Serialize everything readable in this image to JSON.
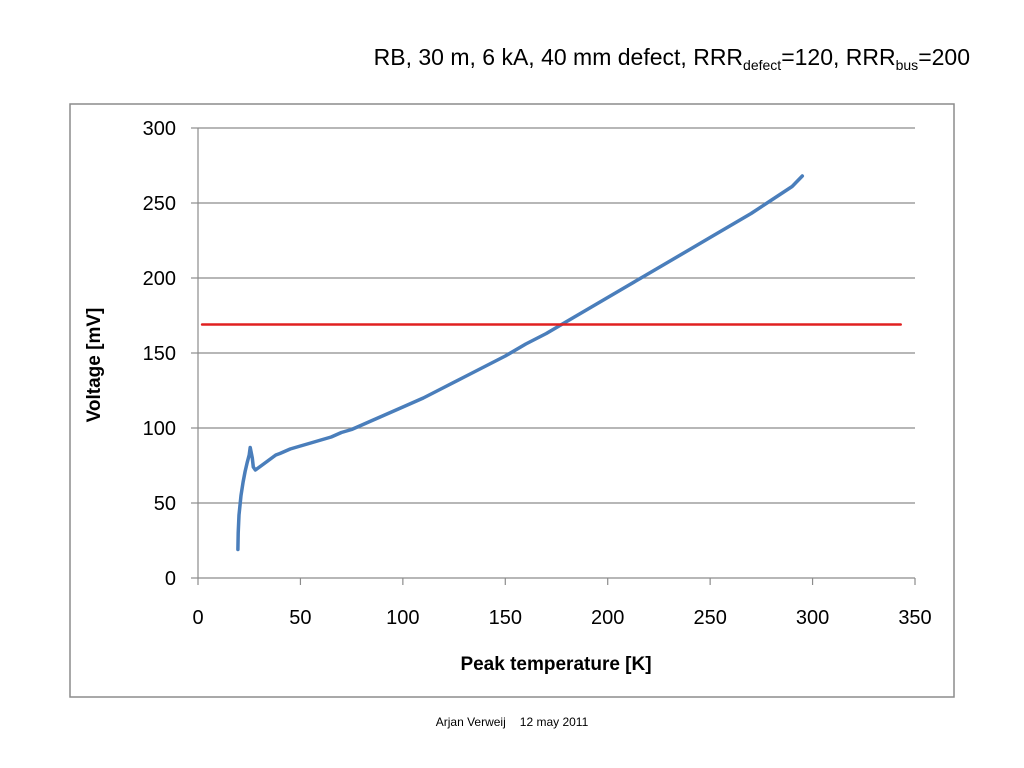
{
  "chart_data": {
    "type": "line",
    "title": {
      "prefix": "RB, 30 m, 6 kA, 40 mm defect, RRR",
      "sub1": "defect",
      "mid": "=120, RRR",
      "sub2": "bus",
      "suffix": "=200"
    },
    "xlabel": "Peak temperature [K]",
    "ylabel": "Voltage [mV]",
    "xlim": [
      0,
      350
    ],
    "ylim": [
      0,
      300
    ],
    "xticks": [
      "0",
      "50",
      "100",
      "150",
      "200",
      "250",
      "300",
      "350"
    ],
    "yticks": [
      "0",
      "50",
      "100",
      "150",
      "200",
      "250",
      "300"
    ],
    "grid": "horizontal major gridlines",
    "legend": "none",
    "series": [
      {
        "color": "#4a7ebb",
        "x": [
          19.5,
          19.6,
          20,
          21,
          22,
          23,
          24,
          25,
          25.5,
          26.5,
          27,
          28,
          30,
          32,
          35,
          38,
          40,
          45,
          50,
          55,
          60,
          65,
          70,
          75,
          80,
          85,
          90,
          100,
          110,
          120,
          130,
          140,
          150,
          160,
          170,
          180,
          190,
          200,
          210,
          220,
          230,
          240,
          250,
          260,
          270,
          280,
          290,
          295
        ],
        "y": [
          19,
          30,
          42,
          55,
          64,
          71,
          77,
          82,
          87,
          80,
          74,
          72,
          74,
          76,
          79,
          82,
          83,
          86,
          88,
          90,
          92,
          94,
          97,
          99,
          102,
          105,
          108,
          114,
          120,
          127,
          134,
          141,
          148,
          156,
          163,
          171,
          179,
          187,
          195,
          203,
          211,
          219,
          227,
          235,
          243,
          252,
          261,
          268
        ]
      },
      {
        "color": "#e02020",
        "x": [
          2,
          343
        ],
        "y": [
          169,
          169
        ]
      }
    ]
  },
  "footer": {
    "author": "Arjan Verweij",
    "date": "12 may 2011"
  }
}
